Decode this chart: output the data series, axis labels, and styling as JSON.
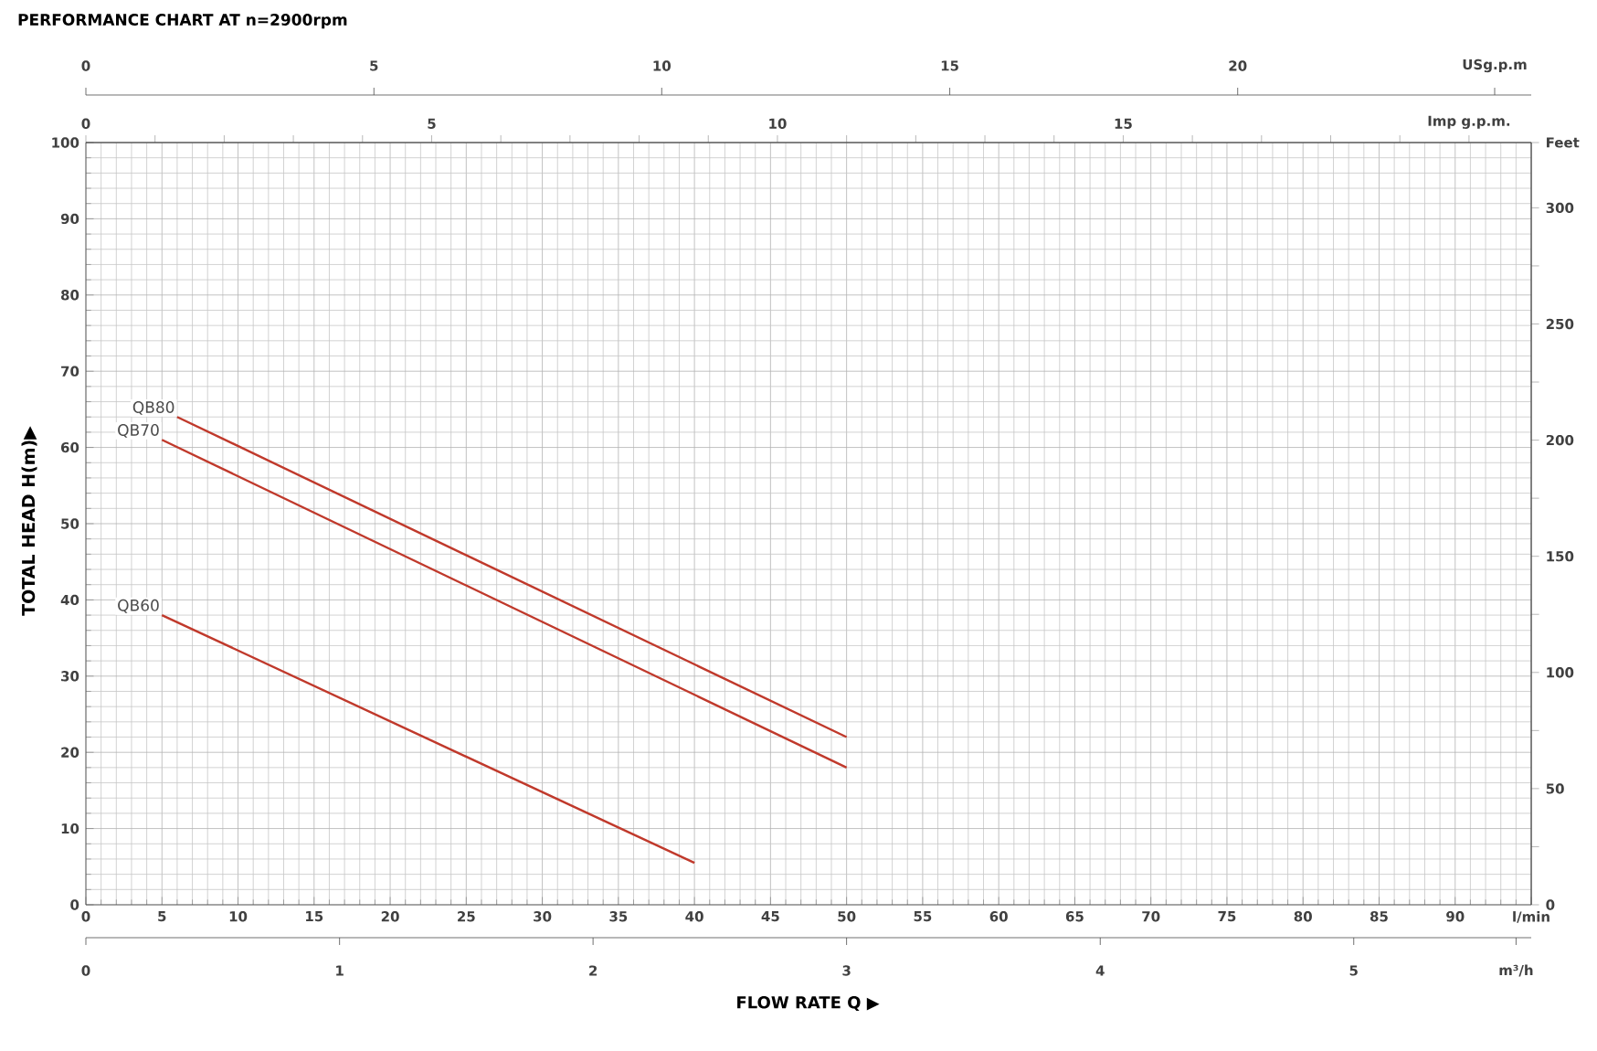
{
  "chart_data": {
    "type": "line",
    "title": "PERFORMANCE CHART AT n=2900rpm",
    "xlabel": "FLOW RATE Q ▶",
    "ylabel": "TOTAL HEAD H(m)▶",
    "series": [
      {
        "name": "QB80",
        "color": "#c0392b",
        "x": [
          6,
          50
        ],
        "values": [
          64,
          22
        ]
      },
      {
        "name": "QB70",
        "color": "#c0392b",
        "x": [
          5,
          50
        ],
        "values": [
          61,
          18
        ]
      },
      {
        "name": "QB60",
        "color": "#c0392b",
        "x": [
          5,
          40
        ],
        "values": [
          38,
          5.5
        ]
      }
    ],
    "xlim": [
      0,
      95
    ],
    "ylim": [
      0,
      100
    ],
    "xticks": [
      0,
      5,
      10,
      15,
      20,
      25,
      30,
      35,
      40,
      45,
      50,
      55,
      60,
      65,
      70,
      75,
      80,
      85,
      90,
      {
        "value": 95,
        "label": "l/min"
      }
    ],
    "yticks": [
      0,
      10,
      20,
      30,
      40,
      50,
      60,
      70,
      80,
      90,
      100
    ],
    "y2lim": [
      0,
      328.08
    ],
    "y2ticks": [
      0,
      {
        "value": 25,
        "label": null
      },
      50,
      {
        "value": 75,
        "label": null
      },
      100,
      {
        "value": 125,
        "label": null
      },
      150,
      {
        "value": 175,
        "label": null
      },
      200,
      {
        "value": 225,
        "label": null
      },
      250,
      {
        "value": 275,
        "label": null
      },
      300,
      {
        "value": 328.08,
        "label": "Feet"
      }
    ],
    "x2lim": [
      0,
      20.9
    ],
    "x2ticks": [
      0,
      {
        "value": 1,
        "label": null
      },
      {
        "value": 2,
        "label": null
      },
      {
        "value": 3,
        "label": null
      },
      {
        "value": 4,
        "label": null
      },
      5,
      {
        "value": 6,
        "label": null
      },
      {
        "value": 7,
        "label": null
      },
      {
        "value": 8,
        "label": null
      },
      {
        "value": 9,
        "label": null
      },
      10,
      {
        "value": 11,
        "label": null
      },
      {
        "value": 12,
        "label": null
      },
      {
        "value": 13,
        "label": null
      },
      {
        "value": 14,
        "label": null
      },
      15,
      {
        "value": 16,
        "label": null
      },
      {
        "value": 17,
        "label": null
      },
      {
        "value": 18,
        "label": null
      },
      {
        "value": 19,
        "label": null
      },
      {
        "value": 20,
        "label": "Imp g.p.m."
      }
    ],
    "annotations": [
      "0",
      "5",
      "10",
      "15",
      "20",
      "USg.p.m",
      "0",
      "1",
      "2",
      "3",
      "4",
      "5",
      "m³/h"
    ],
    "grid": true,
    "marker": "none",
    "line_style": "solid"
  }
}
